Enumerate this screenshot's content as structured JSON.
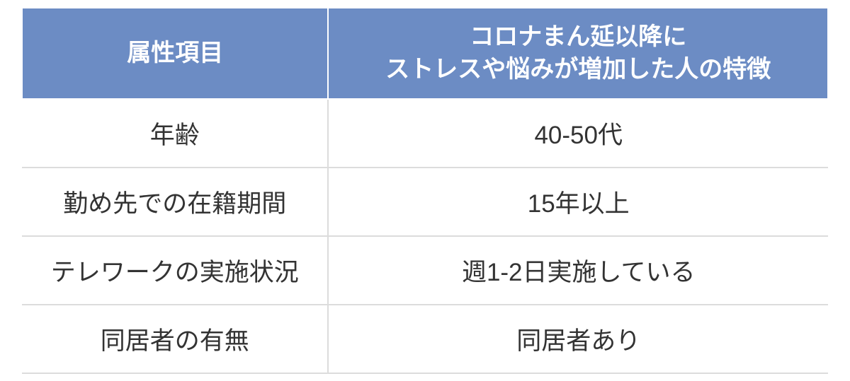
{
  "table": {
    "type": "table",
    "header_bg_color": "#6c8cc4",
    "header_text_color": "#ffffff",
    "row_bg_color": "#ffffff",
    "row_text_color": "#333333",
    "border_color": "#dcdcdc",
    "header_fontsize": 34,
    "cell_fontsize": 35,
    "columns": [
      {
        "label": "属性項目",
        "width_pct": 38
      },
      {
        "label_line1": "コロナまん延以降に",
        "label_line2": "ストレスや悩みが増加した人の特徴",
        "width_pct": 62
      }
    ],
    "rows": [
      {
        "attr": "年齢",
        "value": "40-50代"
      },
      {
        "attr": "勤め先での在籍期間",
        "value": "15年以上"
      },
      {
        "attr": "テレワークの実施状況",
        "value": "週1-2日実施している"
      },
      {
        "attr": "同居者の有無",
        "value": "同居者あり"
      }
    ]
  }
}
